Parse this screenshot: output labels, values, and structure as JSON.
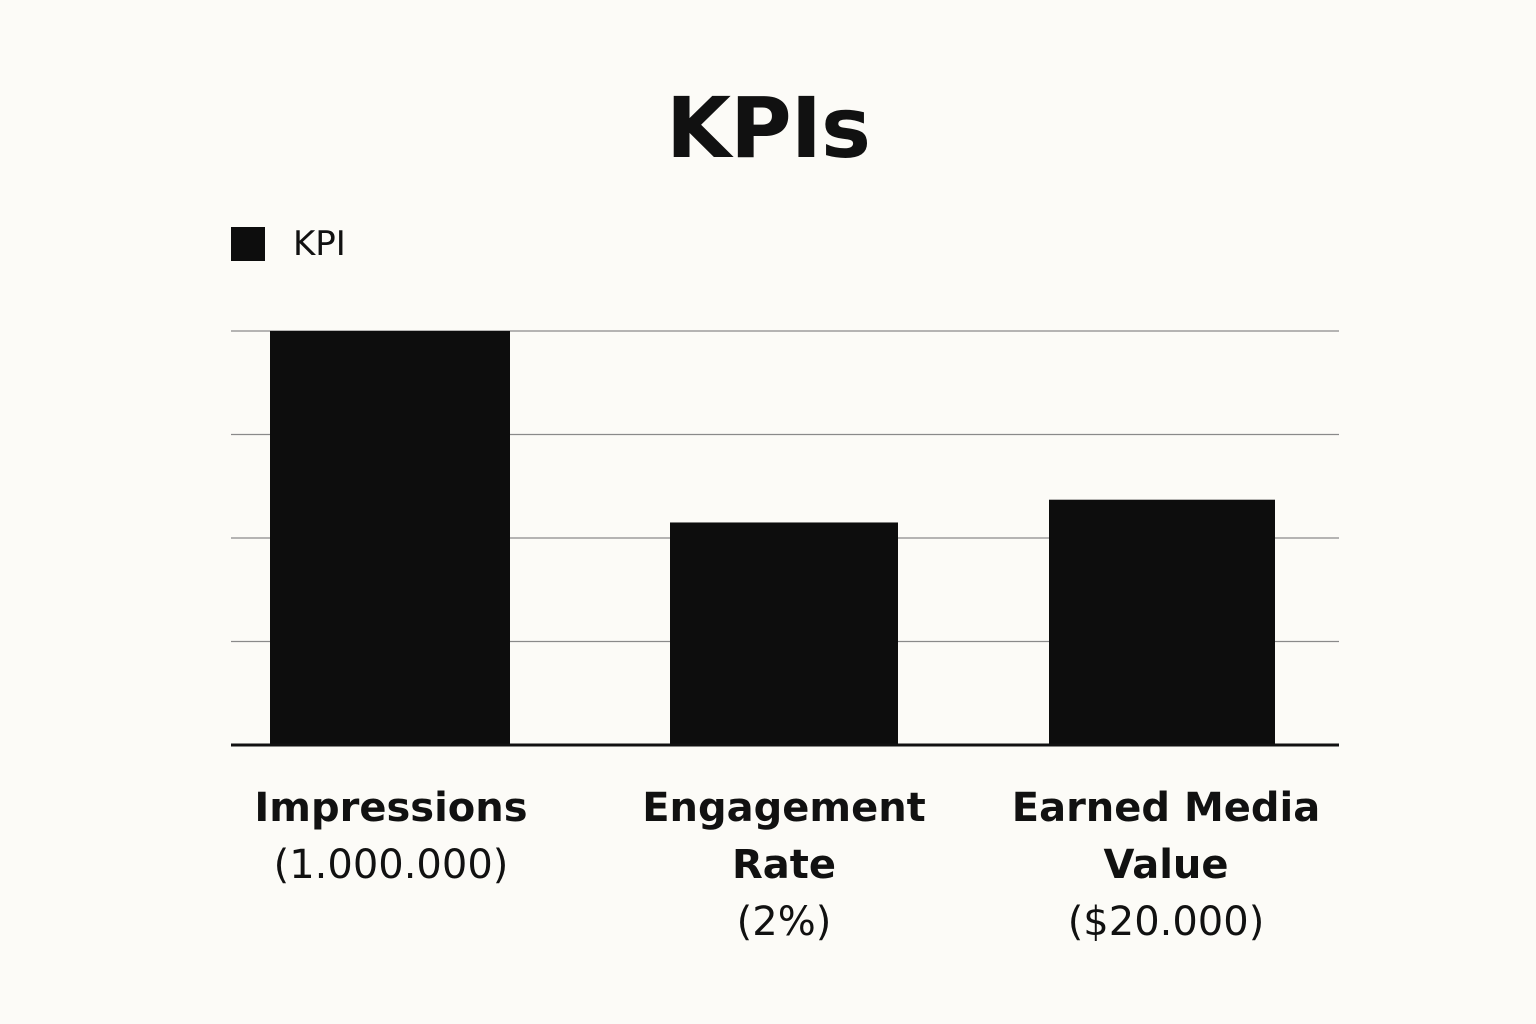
{
  "chart_data": {
    "type": "bar",
    "title": "KPIs",
    "legend": {
      "position": "top-left",
      "entries": [
        "KPI"
      ]
    },
    "categories": [
      "Impressions",
      "Engagement Rate",
      "Earned Media Value"
    ],
    "category_notes": [
      "(1.000.000)",
      "(2%)",
      "($20.000)"
    ],
    "series": [
      {
        "name": "KPI",
        "color": "#0d0d0d",
        "values": [
          4.0,
          2.15,
          2.37
        ]
      }
    ],
    "ylim": [
      0,
      4
    ],
    "y_tick_labels_shown": false,
    "grid": true,
    "xlabel": "",
    "ylabel": ""
  }
}
